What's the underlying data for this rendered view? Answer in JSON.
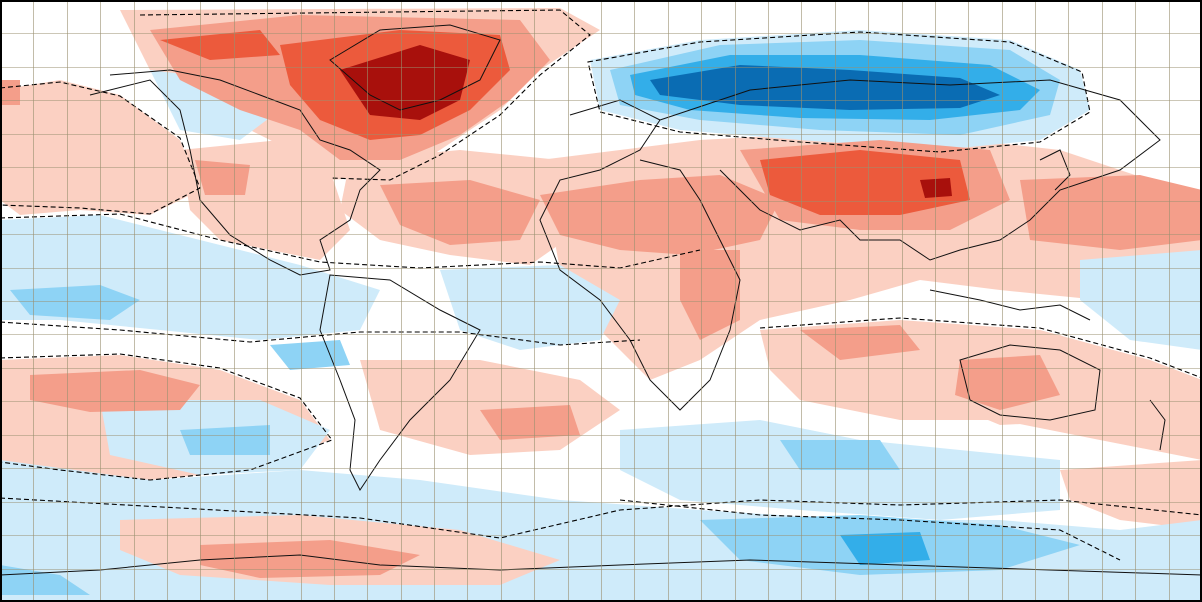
{
  "map": {
    "projection": "equirectangular",
    "field": "anomaly",
    "grid_spacing_degrees": 10,
    "contour_style": "dashed",
    "colors": {
      "background": "#ffffff",
      "warm_1": "#fbd0c2",
      "warm_2": "#f49e8a",
      "warm_3": "#ec5a3c",
      "warm_4": "#a8100c",
      "cold_1": "#cfebfa",
      "cold_2": "#8ed3f5",
      "cold_3": "#33aee9",
      "cold_4": "#0a6cb3",
      "gridline": "#9a9070",
      "coastline": "#111111",
      "contour": "#000000",
      "frame": "#000000"
    },
    "anomaly_regions": [
      {
        "name": "greenland-arctic-canada",
        "sign": "warm",
        "level": 4
      },
      {
        "name": "north-atlantic",
        "sign": "warm",
        "level": 2
      },
      {
        "name": "western-north-america",
        "sign": "warm",
        "level": 2
      },
      {
        "name": "northern-eurasia-russia",
        "sign": "cold",
        "level": 4
      },
      {
        "name": "central-asia-tibet",
        "sign": "warm",
        "level": 3
      },
      {
        "name": "middle-east",
        "sign": "warm",
        "level": 2
      },
      {
        "name": "east-pacific-tropics",
        "sign": "cold",
        "level": 2
      },
      {
        "name": "south-pacific",
        "sign": "warm",
        "level": 2
      },
      {
        "name": "australia",
        "sign": "warm",
        "level": 2
      },
      {
        "name": "southern-ocean",
        "sign": "cold",
        "level": 2
      },
      {
        "name": "antarctica-east",
        "sign": "cold",
        "level": 3
      },
      {
        "name": "antarctic-peninsula",
        "sign": "warm",
        "level": 2
      }
    ]
  }
}
